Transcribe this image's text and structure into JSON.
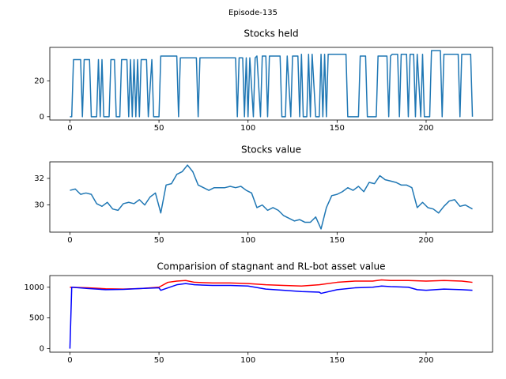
{
  "title": "Episode-135",
  "chart_data": [
    {
      "type": "line",
      "title": "Stocks held",
      "xlim": [
        -11.3,
        237.3
      ],
      "xticks": [
        0,
        50,
        100,
        150,
        200
      ],
      "ylim": [
        -1.85,
        38.85
      ],
      "yticks": [
        0,
        20
      ],
      "series": [
        {
          "color": "#1f77b4",
          "x": [
            0,
            1,
            2,
            6,
            7,
            8,
            11,
            12,
            15,
            16,
            17,
            18,
            19,
            22,
            23,
            25,
            26,
            28,
            29,
            32,
            33,
            34,
            35,
            36,
            37,
            38,
            39,
            40,
            43,
            44,
            46,
            47,
            50,
            51,
            60,
            61,
            62,
            71,
            72,
            73,
            93,
            94,
            95,
            97,
            98,
            99,
            100,
            101,
            103,
            104,
            105,
            107,
            108,
            110,
            111,
            112,
            118,
            119,
            121,
            122,
            124,
            125,
            128,
            129,
            130,
            131,
            133,
            134,
            135,
            136,
            138,
            140,
            141,
            142,
            143,
            144,
            145,
            155,
            156,
            162,
            163,
            166,
            167,
            172,
            173,
            178,
            179,
            180,
            181,
            184,
            185,
            186,
            189,
            190,
            191,
            193,
            194,
            195,
            197,
            198,
            199,
            202,
            203,
            208,
            209,
            210,
            218,
            219,
            220,
            225,
            226
          ],
          "values": [
            0,
            0,
            32,
            32,
            0,
            32,
            32,
            0,
            0,
            32,
            0,
            32,
            0,
            0,
            32,
            32,
            0,
            0,
            32,
            32,
            0,
            32,
            0,
            32,
            0,
            32,
            0,
            32,
            32,
            0,
            32,
            0,
            0,
            34,
            34,
            0,
            33,
            33,
            0,
            33,
            33,
            0,
            33,
            33,
            0,
            33,
            0,
            33,
            0,
            33,
            34,
            0,
            34,
            34,
            0,
            34,
            34,
            0,
            0,
            34,
            0,
            34,
            34,
            0,
            35,
            0,
            0,
            35,
            0,
            35,
            0,
            0,
            35,
            0,
            35,
            0,
            35,
            35,
            0,
            0,
            34,
            34,
            0,
            0,
            34,
            34,
            0,
            34,
            35,
            35,
            0,
            35,
            35,
            0,
            35,
            35,
            0,
            35,
            0,
            35,
            0,
            0,
            37,
            37,
            0,
            35,
            35,
            0,
            35,
            35,
            0
          ]
        }
      ]
    },
    {
      "type": "line",
      "title": "Stocks value",
      "xlim": [
        -11.3,
        237.3
      ],
      "xticks": [
        0,
        50,
        100,
        150,
        200
      ],
      "ylim": [
        27.96,
        33.24
      ],
      "yticks": [
        30,
        32
      ],
      "series": [
        {
          "color": "#1f77b4",
          "x": [
            0,
            3,
            6,
            9,
            12,
            15,
            18,
            21,
            24,
            27,
            30,
            33,
            36,
            39,
            42,
            45,
            48,
            51,
            54,
            57,
            60,
            63,
            66,
            69,
            72,
            75,
            78,
            81,
            84,
            87,
            90,
            93,
            96,
            99,
            102,
            105,
            108,
            111,
            114,
            117,
            120,
            123,
            126,
            129,
            132,
            135,
            138,
            141,
            144,
            147,
            150,
            153,
            156,
            159,
            162,
            165,
            168,
            171,
            174,
            177,
            180,
            183,
            186,
            189,
            192,
            195,
            198,
            201,
            204,
            207,
            210,
            213,
            216,
            219,
            222,
            226
          ],
          "values": [
            31.1,
            31.2,
            30.8,
            30.9,
            30.8,
            30.1,
            29.9,
            30.2,
            29.7,
            29.6,
            30.1,
            30.2,
            30.1,
            30.4,
            30.0,
            30.6,
            30.9,
            29.4,
            31.5,
            31.6,
            32.3,
            32.5,
            33.0,
            32.5,
            31.5,
            31.3,
            31.1,
            31.3,
            31.3,
            31.3,
            31.4,
            31.3,
            31.4,
            31.1,
            30.9,
            29.8,
            30.0,
            29.6,
            29.8,
            29.6,
            29.2,
            29.0,
            28.8,
            28.9,
            28.7,
            28.7,
            29.1,
            28.2,
            29.8,
            30.7,
            30.8,
            31.0,
            31.3,
            31.1,
            31.4,
            31.0,
            31.7,
            31.6,
            32.2,
            31.9,
            31.8,
            31.7,
            31.5,
            31.5,
            31.3,
            29.8,
            30.2,
            29.8,
            29.7,
            29.4,
            29.9,
            30.3,
            30.4,
            29.9,
            30.0,
            29.7
          ]
        }
      ]
    },
    {
      "type": "line",
      "title": "Comparision of stagnant and RL-bot asset value",
      "xlim": [
        -11.3,
        237.3
      ],
      "xticks": [
        0,
        50,
        100,
        150,
        200
      ],
      "ylim": [
        -57,
        1190
      ],
      "yticks": [
        0,
        500,
        1000
      ],
      "series": [
        {
          "color": "#ff0000",
          "x": [
            0,
            10,
            20,
            30,
            40,
            50,
            55,
            60,
            65,
            70,
            80,
            90,
            100,
            110,
            120,
            130,
            140,
            150,
            160,
            170,
            175,
            180,
            190,
            200,
            210,
            220,
            226
          ],
          "values": [
            1000,
            990,
            975,
            970,
            980,
            1000,
            1080,
            1100,
            1110,
            1080,
            1070,
            1070,
            1060,
            1040,
            1030,
            1020,
            1040,
            1080,
            1100,
            1100,
            1120,
            1110,
            1110,
            1100,
            1110,
            1100,
            1080
          ]
        },
        {
          "color": "#0000ff",
          "x": [
            0,
            1,
            10,
            20,
            30,
            40,
            50,
            51,
            60,
            65,
            70,
            80,
            90,
            100,
            110,
            120,
            130,
            140,
            141,
            150,
            160,
            170,
            175,
            180,
            190,
            195,
            200,
            210,
            220,
            226
          ],
          "values": [
            0,
            1000,
            980,
            960,
            965,
            980,
            990,
            950,
            1040,
            1060,
            1040,
            1030,
            1030,
            1020,
            970,
            950,
            930,
            920,
            900,
            960,
            990,
            1000,
            1020,
            1010,
            1000,
            960,
            950,
            970,
            960,
            950
          ]
        }
      ]
    }
  ]
}
